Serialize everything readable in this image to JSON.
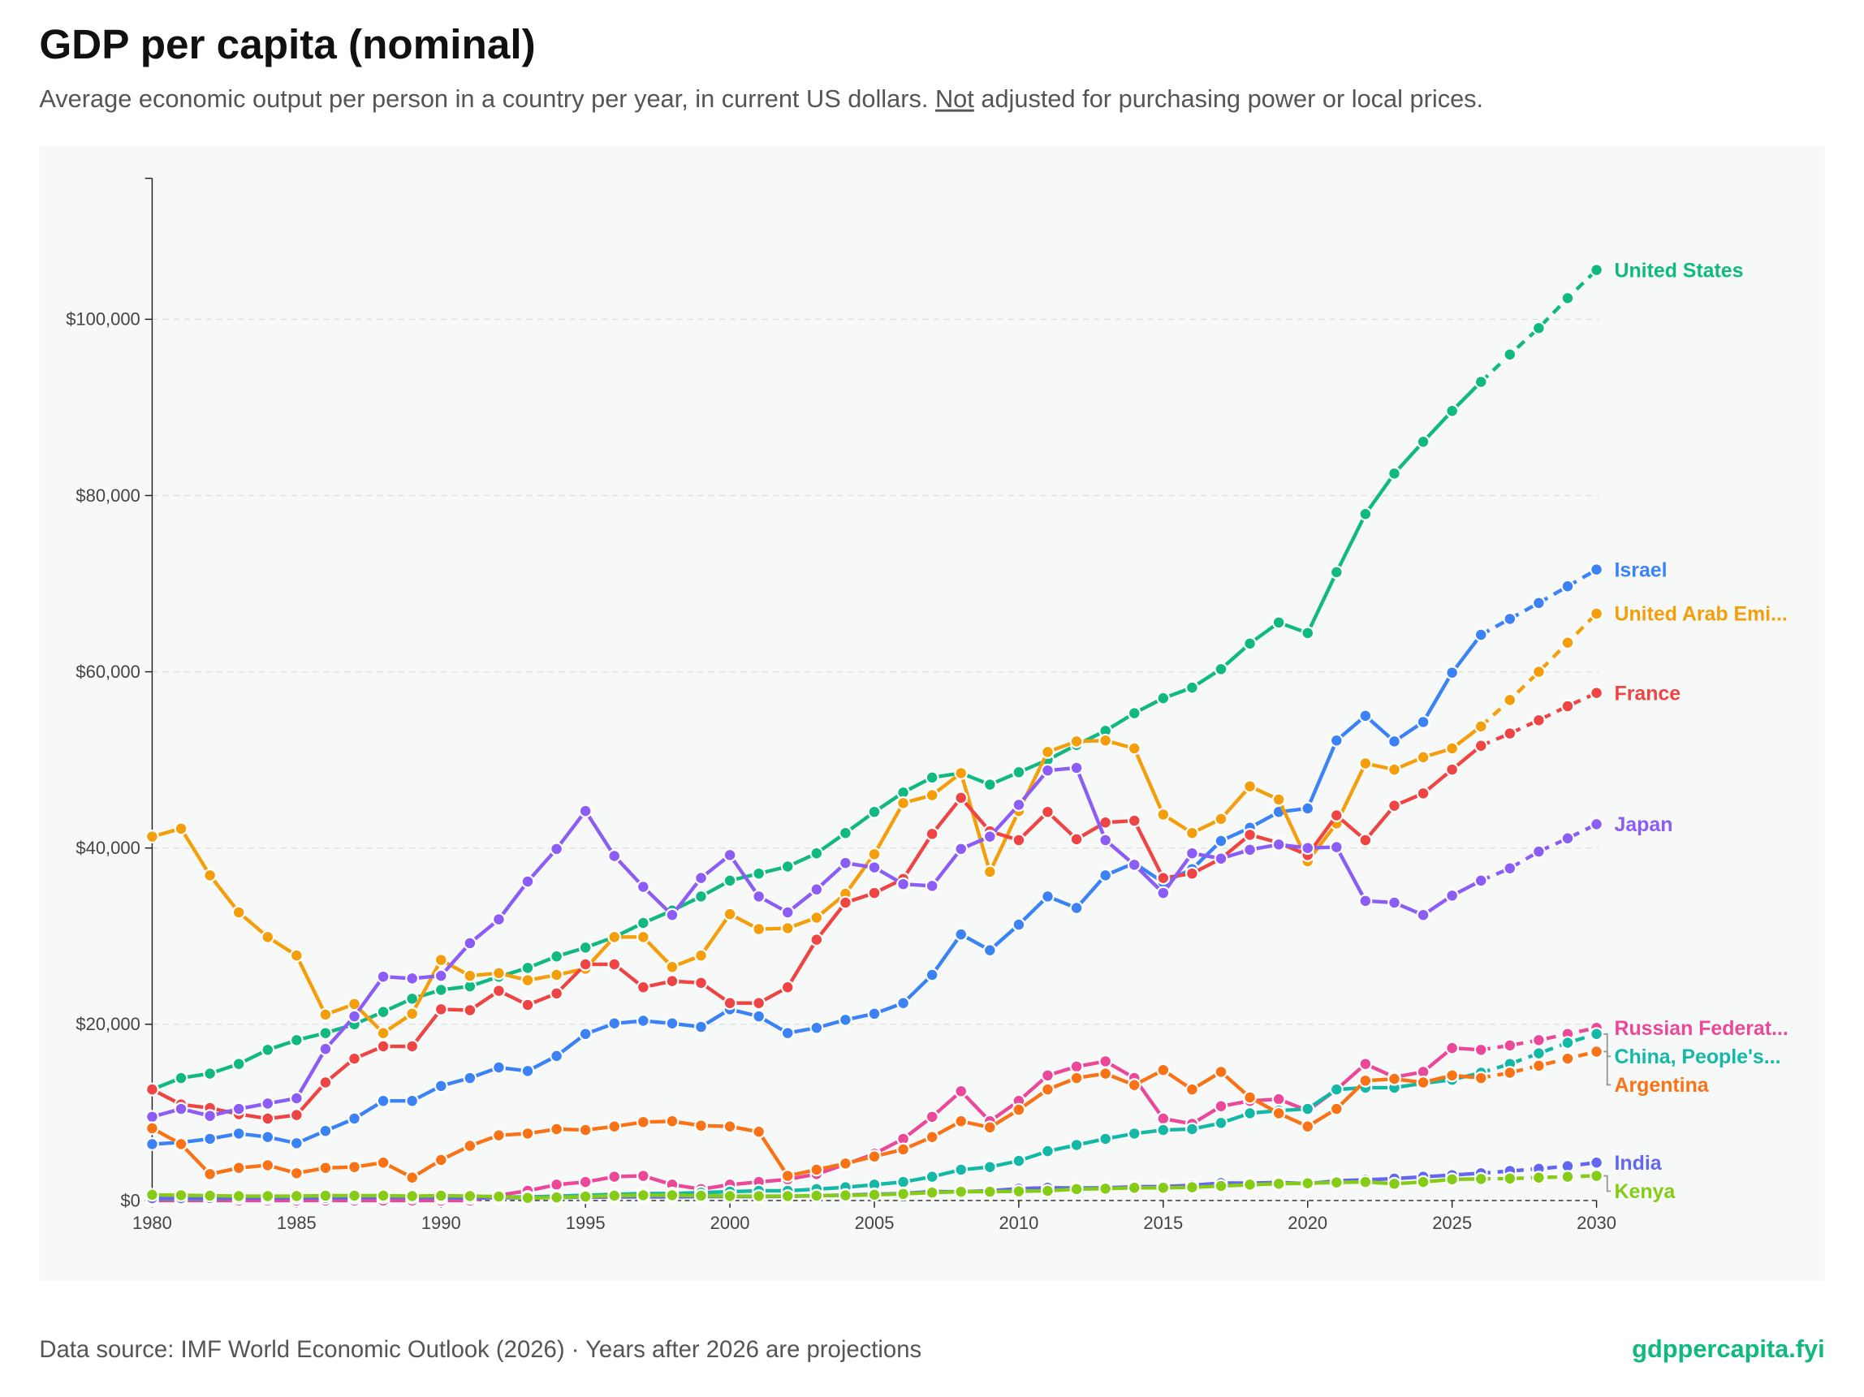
{
  "header": {
    "title": "GDP per capita (nominal)",
    "subtitle_before": "Average economic output per person in a country per year, in current US dollars. ",
    "subtitle_emphasis": "Not",
    "subtitle_after": " adjusted for purchasing power or local prices."
  },
  "footer": {
    "source": "Data source: IMF World Economic Outlook (2026) · Years after 2026 are projections",
    "brand": "gdppercapita.fyi"
  },
  "chart_data": {
    "type": "line",
    "title": "GDP per capita (nominal)",
    "xlabel": "",
    "ylabel": "",
    "xlim": [
      1980,
      2030
    ],
    "ylim": [
      0,
      116000
    ],
    "grid": true,
    "projection_start_after": 2026,
    "x_ticks": [
      1980,
      1985,
      1990,
      1995,
      2000,
      2005,
      2010,
      2015,
      2020,
      2025,
      2030
    ],
    "y_ticks": [
      0,
      20000,
      40000,
      60000,
      80000,
      100000
    ],
    "y_tick_labels": [
      "$0",
      "$20,000",
      "$40,000",
      "$60,000",
      "$80,000",
      "$100,000"
    ],
    "legend_placement": "inline-right",
    "series": [
      {
        "name": "United States",
        "label": "United States",
        "color": "#10b981",
        "values": [
          12.6,
          13.9,
          14.4,
          15.5,
          17.1,
          18.2,
          19.0,
          20.0,
          21.4,
          22.9,
          23.9,
          24.3,
          25.4,
          26.4,
          27.7,
          28.7,
          29.9,
          31.5,
          32.9,
          34.5,
          36.3,
          37.1,
          37.9,
          39.4,
          41.7,
          44.1,
          46.3,
          48.0,
          48.5,
          47.2,
          48.6,
          50.0,
          51.7,
          53.3,
          55.3,
          57.0,
          58.2,
          60.3,
          63.2,
          65.6,
          64.4,
          71.3,
          77.9,
          82.5,
          86.1,
          89.6,
          92.9,
          96.0,
          99.0,
          102.4,
          105.6
        ]
      },
      {
        "name": "Israel",
        "label": "Israel",
        "color": "#3b82f6",
        "values": [
          6.4,
          6.6,
          7.0,
          7.6,
          7.2,
          6.5,
          7.9,
          9.3,
          11.3,
          11.3,
          13.0,
          13.9,
          15.1,
          14.7,
          16.4,
          18.9,
          20.1,
          20.4,
          20.1,
          19.7,
          21.7,
          20.9,
          19.0,
          19.6,
          20.5,
          21.2,
          22.4,
          25.6,
          30.2,
          28.4,
          31.3,
          34.5,
          33.2,
          36.9,
          38.3,
          36.1,
          37.6,
          40.8,
          42.3,
          44.1,
          44.5,
          52.2,
          55.0,
          52.1,
          54.3,
          59.9,
          64.2,
          66.0,
          67.8,
          69.7,
          71.6
        ]
      },
      {
        "name": "United Arab Emirates",
        "label": "United Arab Emi...",
        "color": "#f59e0b",
        "values": [
          41.3,
          42.2,
          36.9,
          32.7,
          29.9,
          27.8,
          21.1,
          22.3,
          19.0,
          21.2,
          27.3,
          25.5,
          25.8,
          25.0,
          25.6,
          26.3,
          29.9,
          29.9,
          26.5,
          27.8,
          32.5,
          30.8,
          30.9,
          32.1,
          34.8,
          39.3,
          45.1,
          46.0,
          48.5,
          37.3,
          44.2,
          50.9,
          52.1,
          52.2,
          51.3,
          43.8,
          41.7,
          43.3,
          47.0,
          45.5,
          38.5,
          42.8,
          49.6,
          48.9,
          50.3,
          51.3,
          53.8,
          56.8,
          60.0,
          63.3,
          66.6
        ]
      },
      {
        "name": "France",
        "label": "France",
        "color": "#ef4444",
        "values": [
          12.6,
          10.9,
          10.5,
          9.8,
          9.3,
          9.7,
          13.4,
          16.1,
          17.5,
          17.5,
          21.7,
          21.6,
          23.8,
          22.2,
          23.5,
          26.8,
          26.8,
          24.2,
          24.9,
          24.7,
          22.4,
          22.4,
          24.2,
          29.6,
          33.8,
          34.9,
          36.5,
          41.6,
          45.7,
          41.9,
          40.9,
          44.1,
          41.0,
          42.9,
          43.1,
          36.6,
          37.1,
          38.8,
          41.5,
          40.6,
          39.2,
          43.7,
          40.9,
          44.8,
          46.2,
          48.9,
          51.6,
          53.0,
          54.5,
          56.1,
          57.6
        ]
      },
      {
        "name": "Japan",
        "label": "Japan",
        "color": "#8b5cf6",
        "values": [
          9.5,
          10.4,
          9.6,
          10.4,
          11.0,
          11.6,
          17.2,
          20.9,
          25.4,
          25.2,
          25.5,
          29.2,
          31.9,
          36.2,
          39.9,
          44.2,
          39.1,
          35.6,
          32.4,
          36.6,
          39.2,
          34.5,
          32.7,
          35.3,
          38.3,
          37.8,
          35.9,
          35.7,
          39.9,
          41.3,
          44.9,
          48.8,
          49.1,
          40.9,
          38.1,
          34.9,
          39.4,
          38.8,
          39.8,
          40.4,
          40.0,
          40.1,
          34.0,
          33.8,
          32.4,
          34.6,
          36.3,
          37.7,
          39.6,
          41.1,
          42.7
        ]
      },
      {
        "name": "Russian Federation",
        "label": "Russian Federat...",
        "color": "#ec4899",
        "values": [
          0,
          0,
          0,
          0,
          0,
          0,
          0,
          0,
          0,
          0,
          0,
          0,
          0.6,
          1.1,
          1.8,
          2.1,
          2.7,
          2.8,
          1.8,
          1.3,
          1.8,
          2.1,
          2.4,
          3.0,
          4.1,
          5.3,
          7.0,
          9.5,
          12.4,
          9.0,
          11.3,
          14.2,
          15.2,
          15.8,
          13.9,
          9.3,
          8.7,
          10.7,
          11.3,
          11.5,
          10.2,
          12.6,
          15.5,
          14.0,
          14.6,
          17.3,
          17.1,
          17.6,
          18.2,
          18.9,
          19.6
        ]
      },
      {
        "name": "China, People's Republic of",
        "label": "China, People's...",
        "color": "#14b8a6",
        "values": [
          0.2,
          0.2,
          0.2,
          0.3,
          0.3,
          0.3,
          0.3,
          0.3,
          0.4,
          0.4,
          0.3,
          0.3,
          0.4,
          0.4,
          0.5,
          0.6,
          0.7,
          0.8,
          0.8,
          0.9,
          1.0,
          1.1,
          1.1,
          1.3,
          1.5,
          1.8,
          2.1,
          2.7,
          3.5,
          3.8,
          4.5,
          5.6,
          6.3,
          7.0,
          7.6,
          8.0,
          8.1,
          8.8,
          9.9,
          10.2,
          10.4,
          12.6,
          12.8,
          12.8,
          13.3,
          13.7,
          14.5,
          15.5,
          16.7,
          17.9,
          18.9
        ]
      },
      {
        "name": "Argentina",
        "label": "Argentina",
        "color": "#f97316",
        "values": [
          8.2,
          6.4,
          3.0,
          3.7,
          4.0,
          3.1,
          3.7,
          3.8,
          4.3,
          2.6,
          4.6,
          6.2,
          7.4,
          7.6,
          8.1,
          8.0,
          8.4,
          8.9,
          9.0,
          8.5,
          8.4,
          7.8,
          2.8,
          3.5,
          4.2,
          5.0,
          5.8,
          7.2,
          9.0,
          8.3,
          10.3,
          12.6,
          13.9,
          14.4,
          13.1,
          14.8,
          12.6,
          14.6,
          11.7,
          9.9,
          8.4,
          10.4,
          13.6,
          13.8,
          13.4,
          14.2,
          13.9,
          14.5,
          15.3,
          16.1,
          16.9
        ]
      },
      {
        "name": "India",
        "label": "India",
        "color": "#6366f1",
        "values": [
          0.27,
          0.27,
          0.28,
          0.29,
          0.28,
          0.3,
          0.31,
          0.34,
          0.36,
          0.35,
          0.37,
          0.3,
          0.32,
          0.3,
          0.35,
          0.38,
          0.4,
          0.42,
          0.41,
          0.44,
          0.44,
          0.45,
          0.47,
          0.54,
          0.62,
          0.71,
          0.8,
          1.02,
          0.99,
          1.1,
          1.35,
          1.45,
          1.43,
          1.44,
          1.56,
          1.59,
          1.73,
          1.98,
          1.97,
          2.05,
          1.91,
          2.24,
          2.35,
          2.48,
          2.7,
          2.88,
          3.1,
          3.35,
          3.6,
          3.9,
          4.3
        ]
      },
      {
        "name": "Kenya",
        "label": "Kenya",
        "color": "#84cc16",
        "values": [
          0.65,
          0.6,
          0.55,
          0.5,
          0.5,
          0.5,
          0.55,
          0.55,
          0.55,
          0.5,
          0.55,
          0.5,
          0.45,
          0.3,
          0.35,
          0.45,
          0.55,
          0.6,
          0.6,
          0.55,
          0.5,
          0.5,
          0.5,
          0.55,
          0.58,
          0.65,
          0.75,
          0.9,
          1.0,
          1.0,
          1.05,
          1.1,
          1.3,
          1.35,
          1.45,
          1.45,
          1.5,
          1.65,
          1.8,
          1.9,
          1.95,
          2.05,
          2.1,
          1.9,
          2.1,
          2.4,
          2.45,
          2.5,
          2.6,
          2.7,
          2.8
        ]
      }
    ],
    "values_unit": "thousand US dollars"
  }
}
